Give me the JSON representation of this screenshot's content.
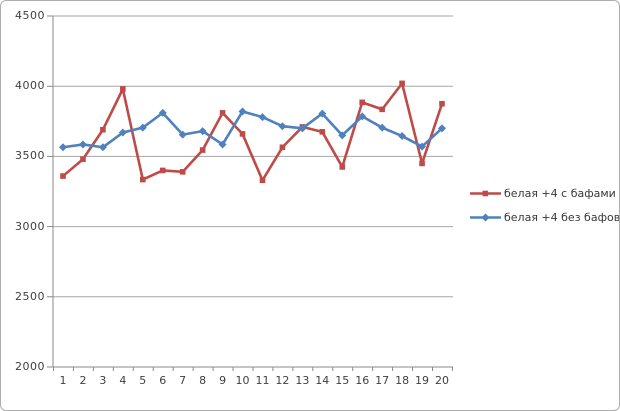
{
  "chart_data": {
    "type": "line",
    "title": "",
    "xlabel": "",
    "ylabel": "",
    "categories": [
      "1",
      "2",
      "3",
      "4",
      "5",
      "6",
      "7",
      "8",
      "9",
      "10",
      "11",
      "12",
      "13",
      "14",
      "15",
      "16",
      "17",
      "18",
      "19",
      "20"
    ],
    "series": [
      {
        "name": "белая +4 с бафами",
        "color": "#be4b48",
        "marker": "square",
        "values": [
          3360,
          3480,
          3690,
          3980,
          3335,
          3400,
          3390,
          3545,
          3810,
          3660,
          3330,
          3565,
          3710,
          3675,
          3425,
          3885,
          3835,
          4020,
          3450,
          3875
        ]
      },
      {
        "name": "белая +4 без бафов",
        "color": "#4f81bd",
        "marker": "diamond",
        "values": [
          3565,
          3585,
          3565,
          3670,
          3705,
          3810,
          3655,
          3680,
          3585,
          3820,
          3780,
          3715,
          3700,
          3805,
          3650,
          3785,
          3705,
          3645,
          3570,
          3700
        ]
      }
    ],
    "ylim": [
      2000,
      4500
    ],
    "ytick_step": 500,
    "y_ticks": [
      "4500",
      "4000",
      "3500",
      "3000",
      "2500",
      "2000"
    ],
    "grid": true,
    "legend_position": "right"
  },
  "colors": {
    "gridline": "#a6a6a6",
    "axis": "#898989",
    "tick_label": "#3f3f3f",
    "background": "#ffffff",
    "border": "#aeaeae"
  }
}
